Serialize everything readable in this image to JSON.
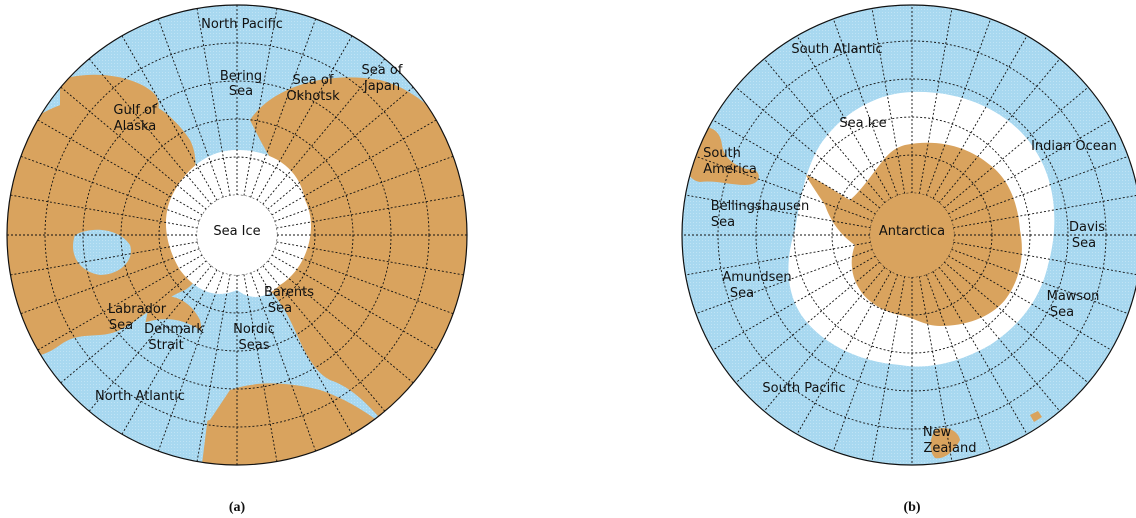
{
  "colors": {
    "ocean": "#a8d8f0",
    "land": "#d9a35e",
    "ice": "#ffffff",
    "grid": "#111111"
  },
  "panels": [
    {
      "caption": "(a)",
      "labels": {
        "north_pacific": "North Pacific",
        "bering_1": "Bering",
        "bering_2": "Sea",
        "okhotsk_1": "Sea of",
        "okhotsk_2": "Okhotsk",
        "japan_1": "Sea of",
        "japan_2": "Japan",
        "alaska_1": "Gulf of",
        "alaska_2": "Alaska",
        "sea_ice": "Sea Ice",
        "barents_1": "Barents",
        "barents_2": "Sea",
        "labrador_1": "Labrador",
        "labrador_2": "Sea",
        "denmark_1": "Denmark",
        "denmark_2": "Strait",
        "nordic_1": "Nordic",
        "nordic_2": "Seas",
        "north_atlantic": "North Atlantic"
      }
    },
    {
      "caption": "(b)",
      "labels": {
        "south_atlantic": "South Atlantic",
        "sea_ice": "Sea Ice",
        "south_america_1": "South",
        "south_america_2": "America",
        "indian_ocean": "Indian Ocean",
        "bellingshausen_1": "Bellingshausen",
        "bellingshausen_2": "Sea",
        "antarctica": "Antarctica",
        "davis_1": "Davis",
        "davis_2": "Sea",
        "amundsen_1": "Amundsen",
        "amundsen_2": "Sea",
        "mawson_1": "Mawson",
        "mawson_2": "Sea",
        "south_pacific": "South Pacific",
        "nz_1": "New",
        "nz_2": "Zealand"
      }
    }
  ]
}
